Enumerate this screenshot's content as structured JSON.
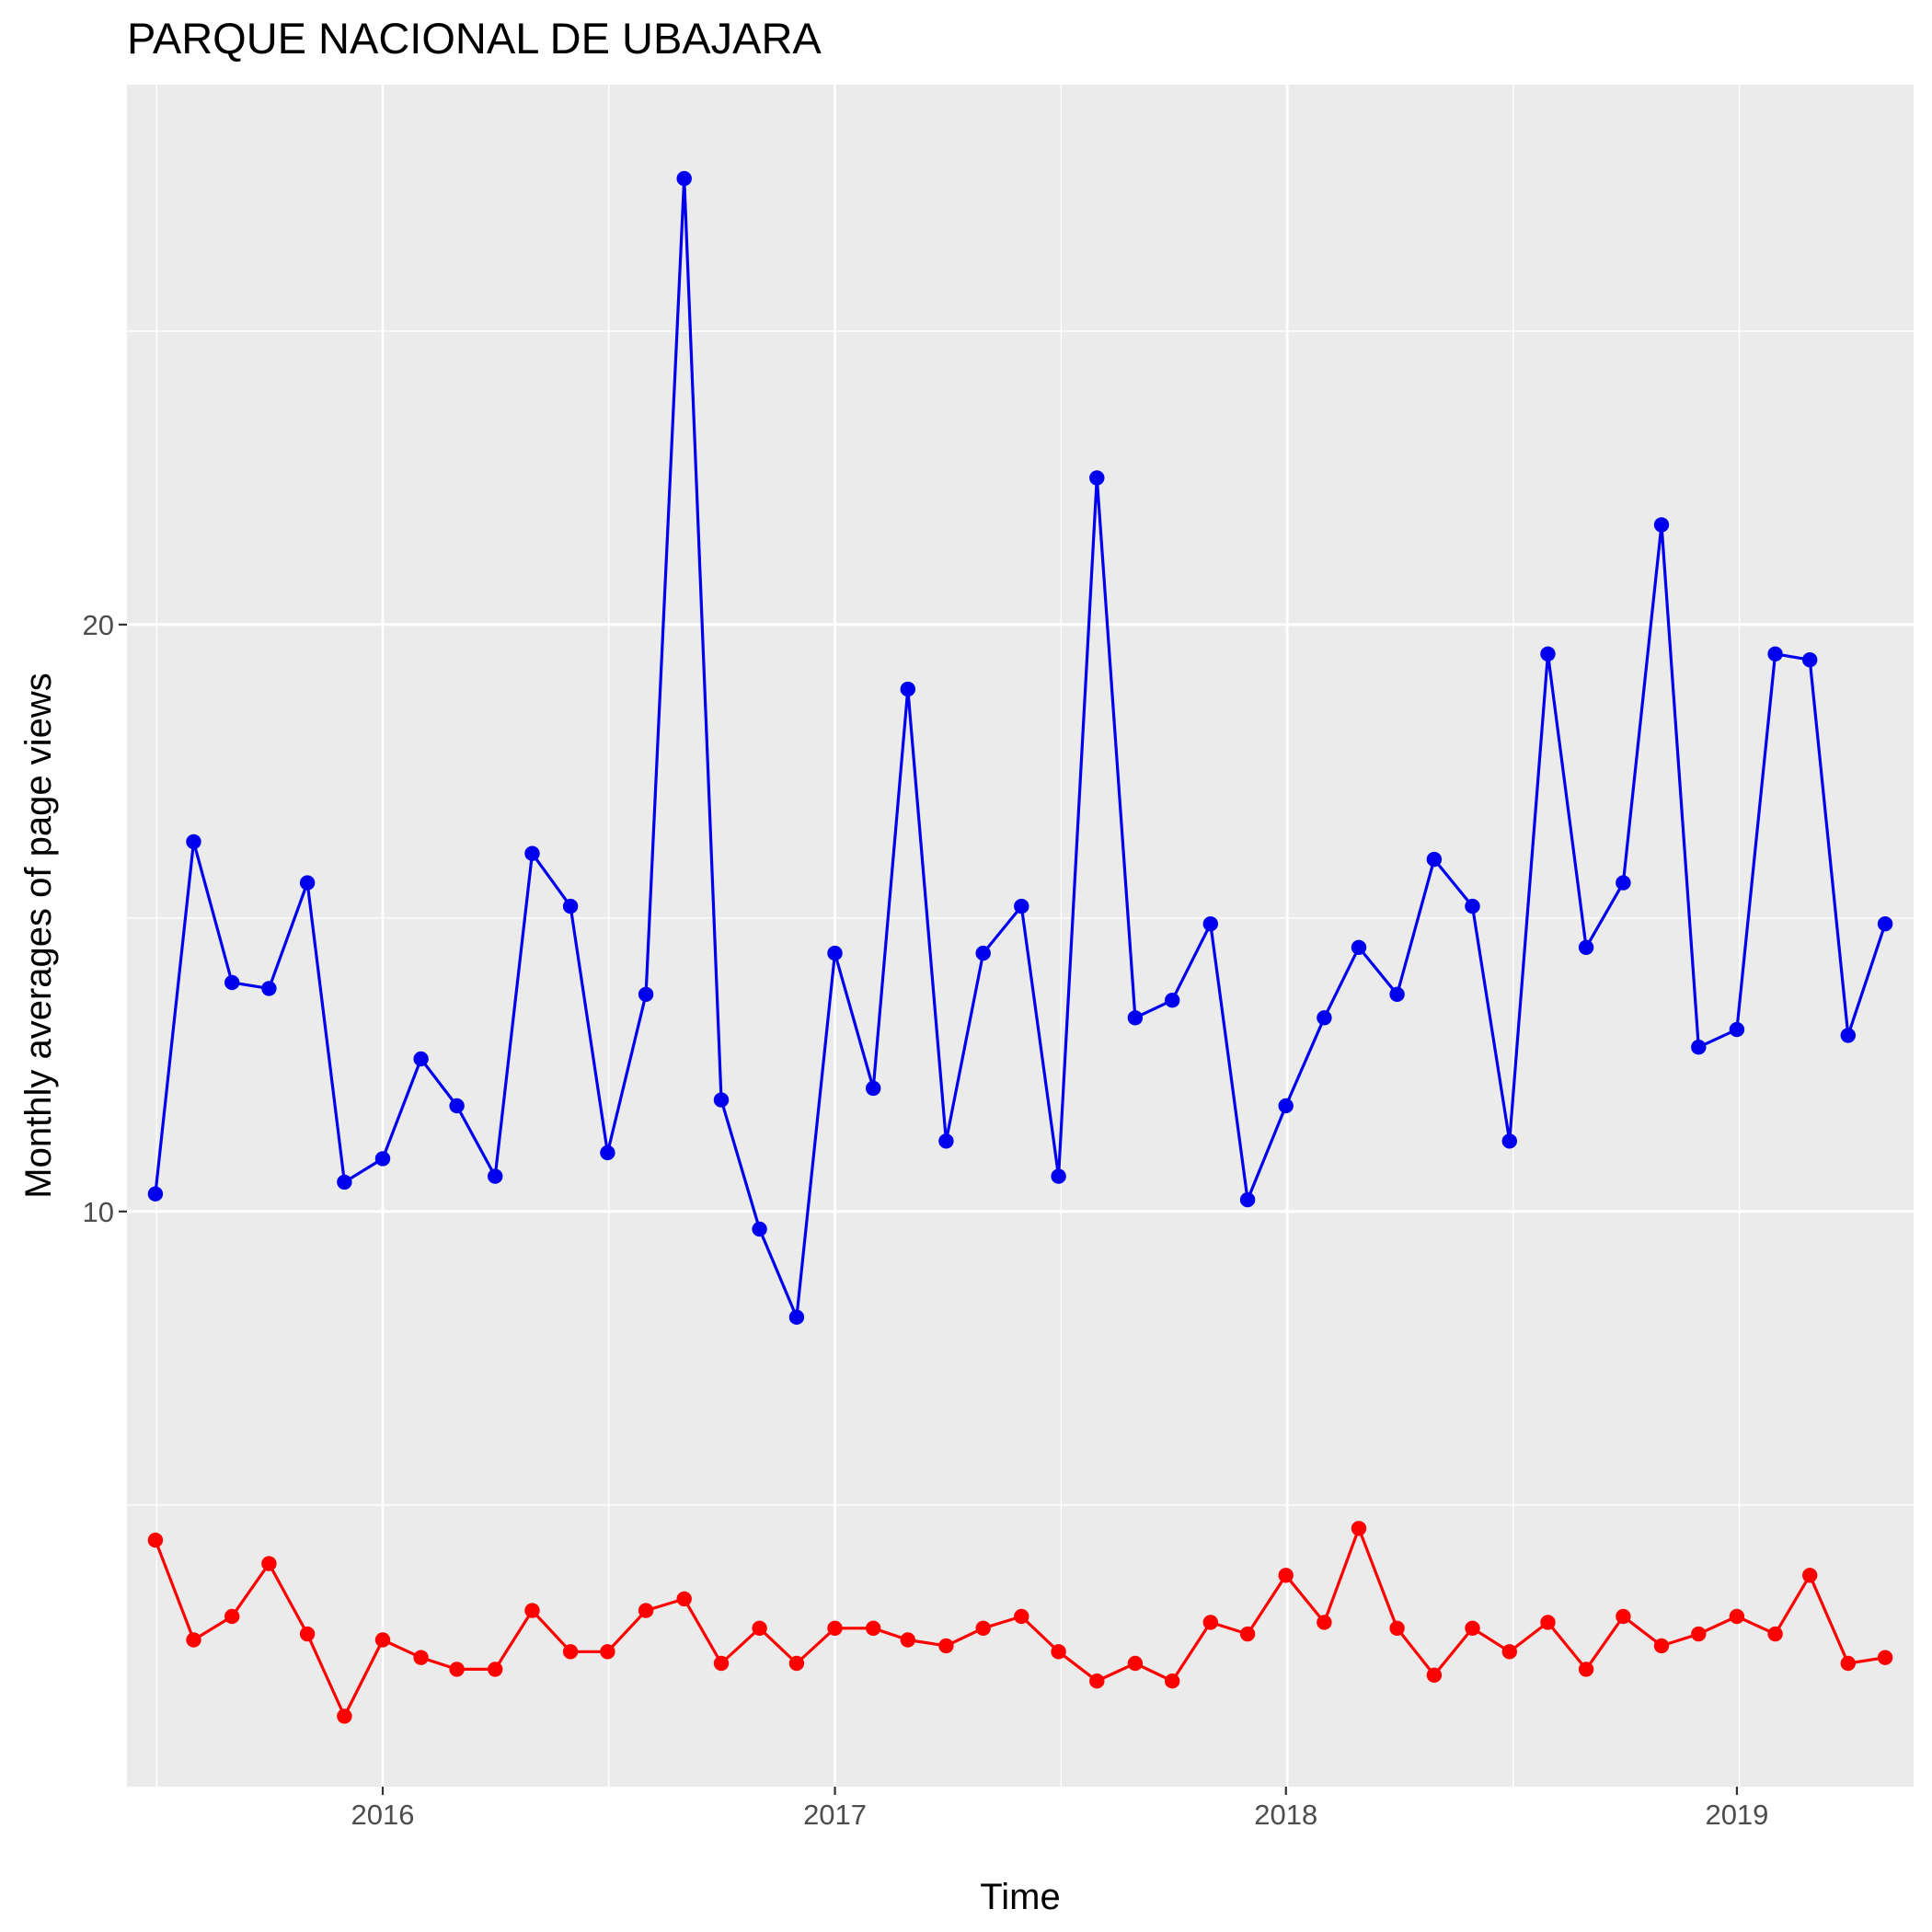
{
  "chart_data": {
    "type": "line",
    "title": "PARQUE NACIONAL DE UBAJARA",
    "xlabel": "Time",
    "ylabel": "Monthly averages of page views",
    "x_ticks": [
      {
        "label": "2016",
        "value": "2016-01-01"
      },
      {
        "label": "2017",
        "value": "2017-01-01"
      },
      {
        "label": "2018",
        "value": "2018-01-01"
      },
      {
        "label": "2019",
        "value": "2019-01-01"
      }
    ],
    "y_ticks": [
      10,
      20
    ],
    "xlim": [
      "2015-06-08",
      "2019-05-24"
    ],
    "ylim": [
      0.2,
      29.2
    ],
    "grid": true,
    "legend": "none",
    "background": "#ebebeb",
    "series": [
      {
        "color": "#0000ee",
        "points": [
          [
            "2015-07-01",
            10.3
          ],
          [
            "2015-08-01",
            16.3
          ],
          [
            "2015-09-01",
            13.9
          ],
          [
            "2015-10-01",
            13.8
          ],
          [
            "2015-11-01",
            15.6
          ],
          [
            "2015-12-01",
            10.5
          ],
          [
            "2016-01-01",
            10.9
          ],
          [
            "2016-02-01",
            12.6
          ],
          [
            "2016-03-01",
            11.8
          ],
          [
            "2016-04-01",
            10.6
          ],
          [
            "2016-05-01",
            16.1
          ],
          [
            "2016-06-01",
            15.2
          ],
          [
            "2016-07-01",
            11.0
          ],
          [
            "2016-08-01",
            13.7
          ],
          [
            "2016-09-01",
            27.6
          ],
          [
            "2016-10-01",
            11.9
          ],
          [
            "2016-11-01",
            9.7
          ],
          [
            "2016-12-01",
            8.2
          ],
          [
            "2017-01-01",
            14.4
          ],
          [
            "2017-02-01",
            12.1
          ],
          [
            "2017-03-01",
            18.9
          ],
          [
            "2017-04-01",
            11.2
          ],
          [
            "2017-05-01",
            14.4
          ],
          [
            "2017-06-01",
            15.2
          ],
          [
            "2017-07-01",
            10.6
          ],
          [
            "2017-08-01",
            22.5
          ],
          [
            "2017-09-01",
            13.3
          ],
          [
            "2017-10-01",
            13.6
          ],
          [
            "2017-11-01",
            14.9
          ],
          [
            "2017-12-01",
            10.2
          ],
          [
            "2018-01-01",
            11.8
          ],
          [
            "2018-02-01",
            13.3
          ],
          [
            "2018-03-01",
            14.5
          ],
          [
            "2018-04-01",
            13.7
          ],
          [
            "2018-05-01",
            16.0
          ],
          [
            "2018-06-01",
            15.2
          ],
          [
            "2018-07-01",
            11.2
          ],
          [
            "2018-08-01",
            19.5
          ],
          [
            "2018-09-01",
            14.5
          ],
          [
            "2018-10-01",
            15.6
          ],
          [
            "2018-11-01",
            21.7
          ],
          [
            "2018-12-01",
            12.8
          ],
          [
            "2019-01-01",
            13.1
          ],
          [
            "2019-02-01",
            19.5
          ],
          [
            "2019-03-01",
            19.4
          ],
          [
            "2019-04-01",
            13.0
          ],
          [
            "2019-05-01",
            14.9
          ]
        ]
      },
      {
        "color": "#ff0000",
        "points": [
          [
            "2015-07-01",
            4.4
          ],
          [
            "2015-08-01",
            2.7
          ],
          [
            "2015-09-01",
            3.1
          ],
          [
            "2015-10-01",
            4.0
          ],
          [
            "2015-11-01",
            2.8
          ],
          [
            "2015-12-01",
            1.4
          ],
          [
            "2016-01-01",
            2.7
          ],
          [
            "2016-02-01",
            2.4
          ],
          [
            "2016-03-01",
            2.2
          ],
          [
            "2016-04-01",
            2.2
          ],
          [
            "2016-05-01",
            3.2
          ],
          [
            "2016-06-01",
            2.5
          ],
          [
            "2016-07-01",
            2.5
          ],
          [
            "2016-08-01",
            3.2
          ],
          [
            "2016-09-01",
            3.4
          ],
          [
            "2016-10-01",
            2.3
          ],
          [
            "2016-11-01",
            2.9
          ],
          [
            "2016-12-01",
            2.3
          ],
          [
            "2017-01-01",
            2.9
          ],
          [
            "2017-02-01",
            2.9
          ],
          [
            "2017-03-01",
            2.7
          ],
          [
            "2017-04-01",
            2.6
          ],
          [
            "2017-05-01",
            2.9
          ],
          [
            "2017-06-01",
            3.1
          ],
          [
            "2017-07-01",
            2.5
          ],
          [
            "2017-08-01",
            2.0
          ],
          [
            "2017-09-01",
            2.3
          ],
          [
            "2017-10-01",
            2.0
          ],
          [
            "2017-11-01",
            3.0
          ],
          [
            "2017-12-01",
            2.8
          ],
          [
            "2018-01-01",
            3.8
          ],
          [
            "2018-02-01",
            3.0
          ],
          [
            "2018-03-01",
            4.6
          ],
          [
            "2018-04-01",
            2.9
          ],
          [
            "2018-05-01",
            2.1
          ],
          [
            "2018-06-01",
            2.9
          ],
          [
            "2018-07-01",
            2.5
          ],
          [
            "2018-08-01",
            3.0
          ],
          [
            "2018-09-01",
            2.2
          ],
          [
            "2018-10-01",
            3.1
          ],
          [
            "2018-11-01",
            2.6
          ],
          [
            "2018-12-01",
            2.8
          ],
          [
            "2019-01-01",
            3.1
          ],
          [
            "2019-02-01",
            2.8
          ],
          [
            "2019-03-01",
            3.8
          ],
          [
            "2019-04-01",
            2.3
          ],
          [
            "2019-05-01",
            2.4
          ]
        ]
      }
    ]
  }
}
